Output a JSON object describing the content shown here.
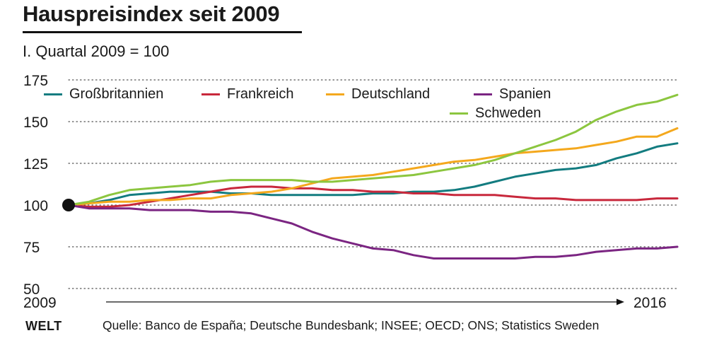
{
  "header": {
    "title": "Hauspreisindex seit 2009",
    "subtitle": "I. Quartal 2009 = 100"
  },
  "footer": {
    "logo": "WELT",
    "source": "Quelle: Banco de España; Deutsche Bundesbank; INSEE; OECD; ONS; Statistics Sweden"
  },
  "colors": {
    "Großbritannien": "#137c80",
    "Frankreich": "#c8283c",
    "Deutschland": "#f4a81d",
    "Spanien": "#7b2582",
    "Schweden": "#8cc63f",
    "grid": "#555555",
    "marker": "#111111"
  },
  "chart_data": {
    "type": "line",
    "title": "Hauspreisindex seit 2009",
    "subtitle": "I. Quartal 2009 = 100",
    "x_start_label": "2009",
    "x_end_label": "2016",
    "x": [
      2009.0,
      2009.25,
      2009.5,
      2009.75,
      2010.0,
      2010.25,
      2010.5,
      2010.75,
      2011.0,
      2011.25,
      2011.5,
      2011.75,
      2012.0,
      2012.25,
      2012.5,
      2012.75,
      2013.0,
      2013.25,
      2013.5,
      2013.75,
      2014.0,
      2014.25,
      2014.5,
      2014.75,
      2015.0,
      2015.25,
      2015.5,
      2015.75,
      2016.0,
      2016.25,
      2016.5
    ],
    "xlim": [
      2009.0,
      2016.5
    ],
    "ylim": [
      50,
      175
    ],
    "yticks": [
      50,
      75,
      100,
      125,
      150,
      175
    ],
    "grid": true,
    "legend_position": "top",
    "start_marker_value": 100,
    "series": [
      {
        "name": "Großbritannien",
        "values": [
          100,
          101,
          103,
          106,
          107,
          108,
          108,
          108,
          107,
          107,
          106,
          106,
          106,
          106,
          106,
          107,
          107,
          108,
          108,
          109,
          111,
          114,
          117,
          119,
          121,
          122,
          124,
          128,
          131,
          135,
          137
        ]
      },
      {
        "name": "Frankreich",
        "values": [
          100,
          99,
          99,
          100,
          102,
          104,
          106,
          108,
          110,
          111,
          111,
          110,
          110,
          109,
          109,
          108,
          108,
          107,
          107,
          106,
          106,
          106,
          105,
          104,
          104,
          103,
          103,
          103,
          103,
          104,
          104
        ]
      },
      {
        "name": "Deutschland",
        "values": [
          100,
          101,
          102,
          102,
          103,
          103,
          104,
          104,
          106,
          107,
          108,
          110,
          113,
          116,
          117,
          118,
          120,
          122,
          124,
          126,
          127,
          129,
          131,
          132,
          133,
          134,
          136,
          138,
          141,
          141,
          146
        ]
      },
      {
        "name": "Spanien",
        "values": [
          100,
          98,
          98,
          98,
          97,
          97,
          97,
          96,
          96,
          95,
          92,
          89,
          84,
          80,
          77,
          74,
          73,
          70,
          68,
          68,
          68,
          68,
          68,
          69,
          69,
          70,
          72,
          73,
          74,
          74,
          75
        ]
      },
      {
        "name": "Schweden",
        "values": [
          100,
          102,
          106,
          109,
          110,
          111,
          112,
          114,
          115,
          115,
          115,
          115,
          114,
          114,
          115,
          116,
          117,
          118,
          120,
          122,
          124,
          127,
          131,
          135,
          139,
          144,
          151,
          156,
          160,
          162,
          166
        ]
      }
    ]
  }
}
